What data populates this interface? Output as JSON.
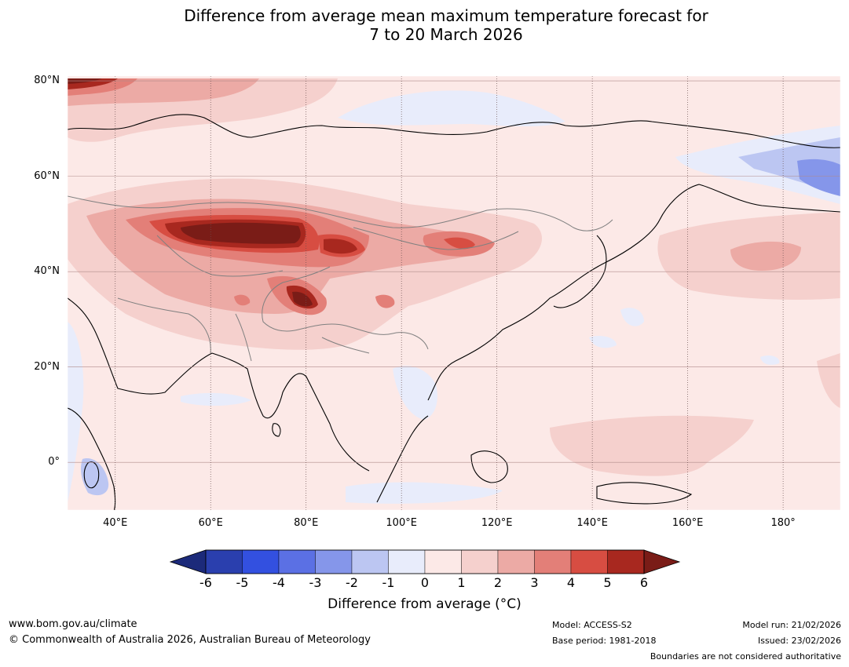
{
  "title": "Difference from average mean maximum temperature forecast for\n7 to 20 March 2026",
  "axes": {
    "lat_ticks": [
      {
        "label": "80°N",
        "value": 80
      },
      {
        "label": "60°N",
        "value": 60
      },
      {
        "label": "40°N",
        "value": 40
      },
      {
        "label": "20°N",
        "value": 20
      },
      {
        "label": "0°",
        "value": 0
      }
    ],
    "lon_ticks": [
      {
        "label": "40°E",
        "value": 40
      },
      {
        "label": "60°E",
        "value": 60
      },
      {
        "label": "80°E",
        "value": 80
      },
      {
        "label": "100°E",
        "value": 100
      },
      {
        "label": "120°E",
        "value": 120
      },
      {
        "label": "140°E",
        "value": 140
      },
      {
        "label": "160°E",
        "value": 160
      },
      {
        "label": "180°",
        "value": 180
      }
    ],
    "lat_range": [
      -10,
      81
    ],
    "lon_range": [
      30,
      192
    ]
  },
  "colorbar": {
    "ticks": [
      "-6",
      "-5",
      "-4",
      "-3",
      "-2",
      "-1",
      "0",
      "1",
      "2",
      "3",
      "4",
      "5",
      "6"
    ],
    "colors": [
      "#1c2a7a",
      "#2a3fae",
      "#3350e0",
      "#5b70e4",
      "#8596ea",
      "#bcc6f2",
      "#e8ecfb",
      "#fce9e7",
      "#f5d0cd",
      "#ecaaa5",
      "#e37f78",
      "#d74d42",
      "#a8281f",
      "#7a1c17"
    ],
    "label": "Difference from average (°C)"
  },
  "footer": {
    "website": "www.bom.gov.au/climate",
    "copyright": "© Commonwealth of Australia 2026, Australian Bureau of Meteorology",
    "model": "Model: ACCESS-S2",
    "base_period": "Base period: 1981-2018",
    "model_run": "Model run: 21/02/2026",
    "issued": "Issued: 23/02/2026",
    "disclaimer": "Boundaries are not considered authoritative"
  }
}
